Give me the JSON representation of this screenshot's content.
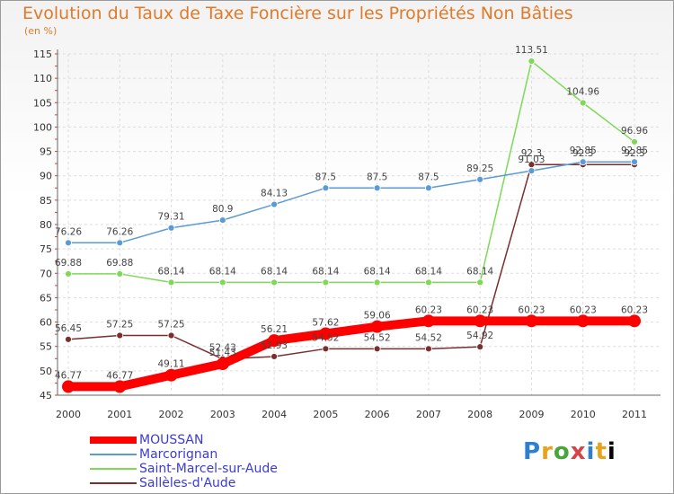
{
  "chart_data": {
    "type": "line",
    "title": "Evolution du Taux de Taxe Foncière sur les Propriétés Non Bâties",
    "subtitle": "(en %)",
    "x": [
      "2000",
      "2001",
      "2002",
      "2003",
      "2004",
      "2005",
      "2006",
      "2007",
      "2008",
      "2009",
      "2010",
      "2011"
    ],
    "ylim": [
      45,
      115
    ],
    "yticks": [
      45,
      50,
      55,
      60,
      65,
      70,
      75,
      80,
      85,
      90,
      95,
      100,
      105,
      110,
      115
    ],
    "grid": true,
    "legend_position": "bottom-left",
    "series": [
      {
        "name": "MOUSSAN",
        "color": "#ff0000",
        "values": [
          46.77,
          46.77,
          49.11,
          51.43,
          56.21,
          57.62,
          59.06,
          60.23,
          60.23,
          60.23,
          60.23,
          60.23
        ],
        "labels": [
          "46.77",
          "46.77",
          "49.11",
          "51.43",
          "56.21",
          "57.62",
          "59.06",
          "60.23",
          "60.23",
          "60.23",
          "60.23",
          "60.23"
        ]
      },
      {
        "name": "Marcorignan",
        "color": "#5b9bd5",
        "values": [
          76.26,
          76.26,
          79.31,
          80.9,
          84.13,
          87.5,
          87.5,
          87.5,
          89.25,
          91.03,
          92.85,
          92.85
        ],
        "labels": [
          "76.26",
          "76.26",
          "79.31",
          "80.9",
          "84.13",
          "87.5",
          "87.5",
          "87.5",
          "89.25",
          "91.03",
          "92.85",
          "92.85"
        ]
      },
      {
        "name": "Saint-Marcel-sur-Aude",
        "color": "#7ed957",
        "values": [
          69.88,
          69.88,
          68.14,
          68.14,
          68.14,
          68.14,
          68.14,
          68.14,
          68.14,
          113.51,
          104.96,
          96.96
        ],
        "labels": [
          "69.88",
          "69.88",
          "68.14",
          "68.14",
          "68.14",
          "68.14",
          "68.14",
          "68.14",
          "68.14",
          "113.51",
          "104.96",
          "96.96"
        ]
      },
      {
        "name": "Sallèles-d'Aude",
        "color": "#7a2e2e",
        "values": [
          56.45,
          57.25,
          57.25,
          52.43,
          52.93,
          54.52,
          54.52,
          54.52,
          54.92,
          92.3,
          92.3,
          92.3
        ],
        "labels": [
          "56.45",
          "57.25",
          "57.25",
          "52.43",
          "52.93",
          "54.52",
          "54.52",
          "54.52",
          "54.92",
          "92.3",
          "92.3",
          "92.3"
        ]
      }
    ]
  },
  "logo": {
    "text": [
      "P",
      "r",
      "o",
      "x",
      "i",
      "t",
      "i"
    ]
  }
}
